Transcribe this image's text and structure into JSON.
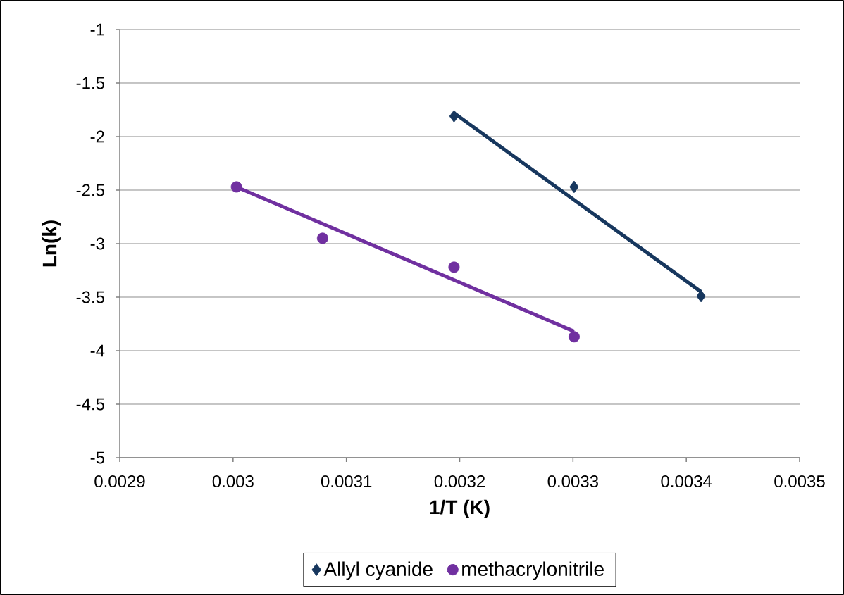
{
  "chart_data": {
    "type": "scatter",
    "xlabel": "1/T (K)",
    "ylabel": "Ln(k)",
    "xlim": [
      0.0029,
      0.0035
    ],
    "xticks": [
      0.0029,
      0.003,
      0.0031,
      0.0032,
      0.0033,
      0.0034,
      0.0035
    ],
    "ylim": [
      -5,
      -1
    ],
    "yticks": [
      -5,
      -4.5,
      -4,
      -3.5,
      -3,
      -2.5,
      -2,
      -1.5,
      -1
    ],
    "grid": "y",
    "legend": "bottom",
    "series": [
      {
        "name": "Allyl cyanide",
        "color": "#17375e",
        "marker": "diamond",
        "x": [
          0.003195,
          0.003301,
          0.003413
        ],
        "values": [
          -1.81,
          -2.47,
          -3.49
        ]
      },
      {
        "name": "methacrylonitrile",
        "color": "#7030a0",
        "marker": "circle",
        "x": [
          0.003003,
          0.003079,
          0.003195,
          0.003301
        ],
        "values": [
          -2.47,
          -2.95,
          -3.22,
          -3.87
        ]
      },
      {
        "type": "line",
        "color": "#17375e",
        "marker": "none",
        "x": [
          0.003195,
          0.003413
        ],
        "values": [
          -1.78,
          -3.45
        ]
      },
      {
        "type": "line",
        "color": "#7030a0",
        "marker": "none",
        "x": [
          0.003003,
          0.003301
        ],
        "values": [
          -2.47,
          -3.82
        ]
      }
    ]
  }
}
